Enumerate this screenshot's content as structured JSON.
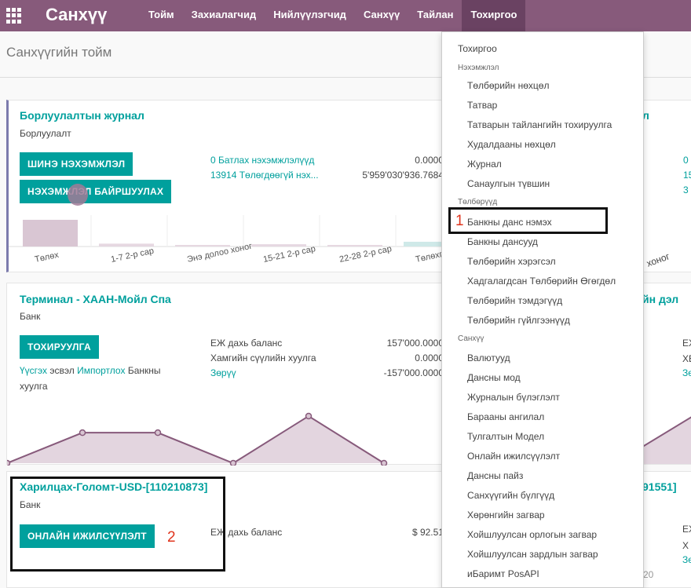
{
  "app": {
    "brand": "Санхүү"
  },
  "menu": [
    {
      "label": "Тойм"
    },
    {
      "label": "Захиалагчид"
    },
    {
      "label": "Нийлүүлэгчид"
    },
    {
      "label": "Санхүү"
    },
    {
      "label": "Тайлан"
    },
    {
      "label": "Тохиргоо"
    }
  ],
  "page": {
    "title": "Санхүүгийн тойм"
  },
  "card1": {
    "title": "Борлуулалтын журнал",
    "type": "Борлуулалт",
    "btn_new": "ШИНЭ НЭХЭМЖЛЭЛ",
    "btn_upload": "НЭХЭМЖЛЭЛ БАЙРШУУЛАХ",
    "link1": "0 Батлах нэхэмжлэлүүд",
    "link2": "13914 Төлөгдөөгүй нэх...",
    "num1": "0.0000",
    "num2": "5'959'030'936.7684",
    "right_title": "л",
    "right_nums": [
      "0",
      "15",
      "3"
    ]
  },
  "card2": {
    "title": "Терминал - ХААН-Мойл Спа",
    "type": "Банк",
    "btn": "ТОХИРУУЛГА",
    "link_search": "Үүсгэх",
    "txt_or": "эсвэл",
    "link_import": "Импортлох",
    "txt_bank": "Банкны",
    "txt_statement": "хуулга",
    "lbl_balance": "ЕЖ дахь баланс",
    "lbl_last": "Хамгийн сүүлийн хуулга",
    "link_diff": "Зөрүү",
    "val_balance": "157'000.0000",
    "val_last": "0.0000",
    "val_diff": "-157'000.0000",
    "right_title": "йн дэл",
    "right_lines": [
      "ЕХ",
      "ХЕ",
      "Зө"
    ]
  },
  "card3": {
    "title": "Харилцах-Голомт-USD-[110210873]",
    "type": "Банк",
    "btn": "ОНЛАЙН ИЖИЛСҮҮЛЭЛТ",
    "lbl_balance": "ЕЖ дахь баланс",
    "val_balance": "$ 92.51",
    "right_title": "91551]",
    "right_lines": [
      "ЕХ",
      "Х",
      "Зө"
    ],
    "right_partial": "20"
  },
  "chart_data": {
    "type": "bar",
    "categories": [
      "Төлөх",
      "1-7 2-р сар",
      "Энэ долоо хоног",
      "15-21 2-р сар",
      "22-28 2-р сар",
      "Төлөхгүй"
    ],
    "values": [
      14,
      1.5,
      0.3,
      1.2,
      0.8,
      2.5
    ],
    "right_category": "хоног"
  },
  "line_chart": {
    "type": "area",
    "points": [
      0,
      55,
      55,
      0,
      85,
      0
    ]
  },
  "dropdown": {
    "top_label": "Тохиргоо",
    "sections": [
      {
        "header": "Нэхэмжлэл",
        "items": [
          "Төлбөрийн нөхцөл",
          "Татвар",
          "Татварын тайлангийн тохируулга",
          "Худалдааны нөхцөл",
          "Журнал",
          "Санаулгын түвшин"
        ]
      },
      {
        "header": "Төлбөрүүд",
        "items": [
          "Банкны данс нэмэх",
          "Банкны дансууд",
          "Төлбөрийн хэрэгсэл",
          "Хадгалагдсан Төлбөрийн Өгөгдөл",
          "Төлбөрийн тэмдэгүүд",
          "Төлбөрийн гүйлгээнүүд"
        ]
      },
      {
        "header": "Санхүү",
        "items": [
          "Валютууд",
          "Дансны мод",
          "Журналын бүлэглэлт",
          "Барааны ангилал",
          "Тулгалтын Модел",
          "Онлайн ижилсүүлэлт",
          "Дансны пайз",
          "Санхүүгийн бүлгүүд",
          "Хөрөнгийн загвар",
          "Хойшлуулсан орлогын загвар",
          "Хойшлуулсан зардлын загвар",
          "иБаримт PosAPI"
        ]
      }
    ]
  },
  "annotations": {
    "num1": "1",
    "num2": "2"
  },
  "colors": {
    "topbar": "#875a7b",
    "accent": "#00a09d",
    "annotation": "#e0341c"
  }
}
